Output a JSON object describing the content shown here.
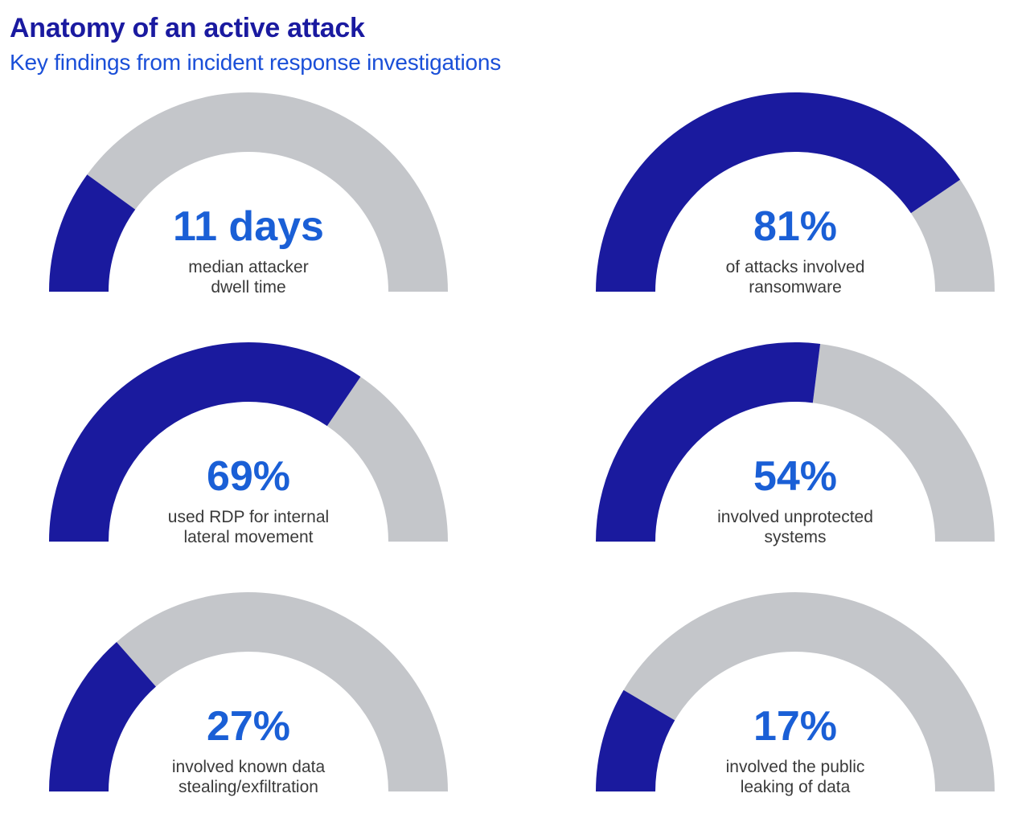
{
  "header": {
    "title": "Anatomy of an active attack",
    "subtitle": "Key findings from incident response investigations"
  },
  "colors": {
    "filled": "#1a1a9e",
    "track": "#c4c6ca",
    "value_text": "#1a5fd6",
    "caption_text": "#3a3a3a",
    "title": "#1a1aa0",
    "subtitle": "#1a4fd8"
  },
  "chart_data": [
    {
      "type": "gauge",
      "value_label": "11 days",
      "caption": [
        "median attacker",
        "dwell time"
      ],
      "fraction": 0.2,
      "range": [
        0,
        1
      ]
    },
    {
      "type": "gauge",
      "value_label": "81%",
      "caption": [
        "of attacks involved",
        "ransomware"
      ],
      "fraction": 0.81,
      "range": [
        0,
        1
      ]
    },
    {
      "type": "gauge",
      "value_label": "69%",
      "caption": [
        "used RDP for internal",
        "lateral movement"
      ],
      "fraction": 0.69,
      "range": [
        0,
        1
      ]
    },
    {
      "type": "gauge",
      "value_label": "54%",
      "caption": [
        "involved unprotected",
        "systems"
      ],
      "fraction": 0.54,
      "range": [
        0,
        1
      ]
    },
    {
      "type": "gauge",
      "value_label": "27%",
      "caption": [
        "involved known data",
        "stealing/exfiltration"
      ],
      "fraction": 0.27,
      "range": [
        0,
        1
      ]
    },
    {
      "type": "gauge",
      "value_label": "17%",
      "caption": [
        "involved the public",
        "leaking of data"
      ],
      "fraction": 0.17,
      "range": [
        0,
        1
      ]
    }
  ]
}
